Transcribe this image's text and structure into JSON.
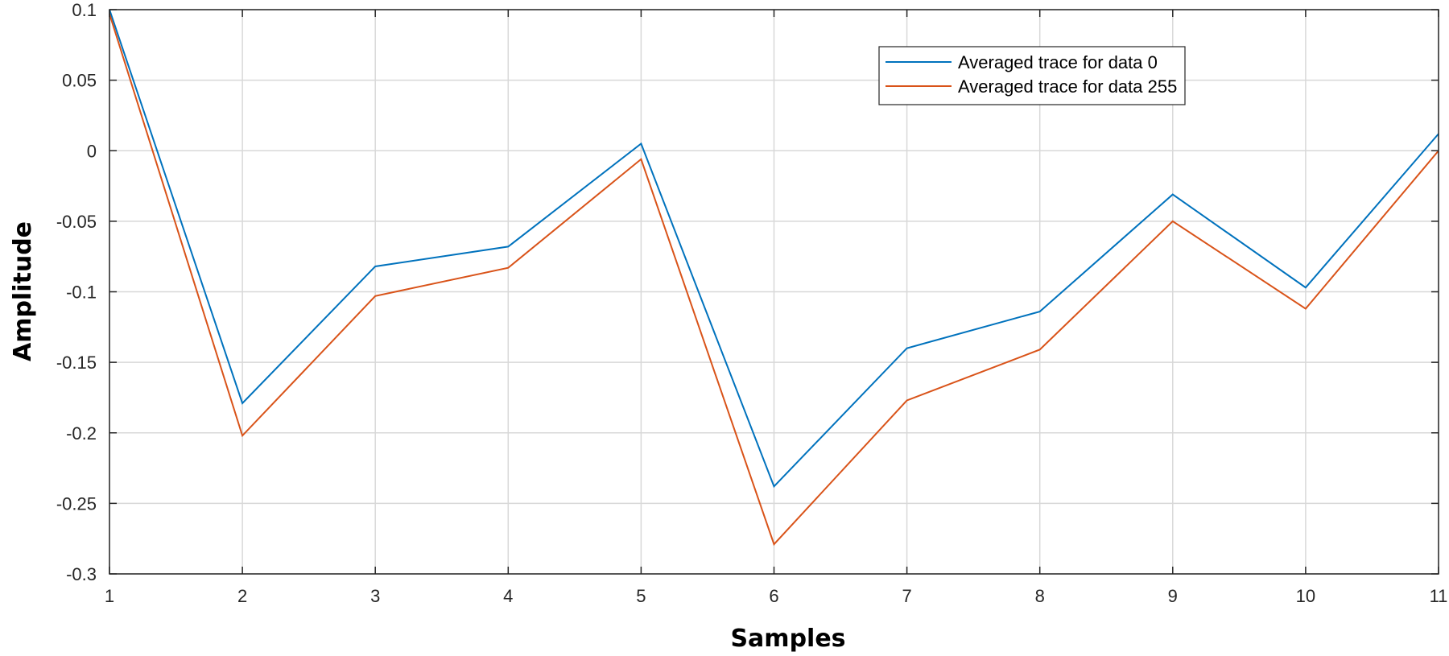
{
  "chart_data": {
    "type": "line",
    "title": "",
    "xlabel": "Samples",
    "ylabel": "Amplitude",
    "x": [
      1,
      2,
      3,
      4,
      5,
      6,
      7,
      8,
      9,
      10,
      11
    ],
    "xlim": [
      1,
      11
    ],
    "ylim": [
      -0.3,
      0.1
    ],
    "xticks": [
      "1",
      "2",
      "3",
      "4",
      "5",
      "6",
      "7",
      "8",
      "9",
      "10",
      "11"
    ],
    "xtick_values": [
      1,
      2,
      3,
      4,
      5,
      6,
      7,
      8,
      9,
      10,
      11
    ],
    "yticks": [
      "0.1",
      "0.05",
      "0",
      "-0.05",
      "-0.1",
      "-0.15",
      "-0.2",
      "-0.25",
      "-0.3"
    ],
    "ytick_values": [
      0.1,
      0.05,
      0,
      -0.05,
      -0.1,
      -0.15,
      -0.2,
      -0.25,
      -0.3
    ],
    "grid": true,
    "legend_position": "top-right",
    "series": [
      {
        "name": "Averaged trace for data 0",
        "color": "#0072BD",
        "values": [
          0.1,
          -0.179,
          -0.082,
          -0.068,
          0.005,
          -0.238,
          -0.14,
          -0.114,
          -0.031,
          -0.097,
          0.012
        ]
      },
      {
        "name": "Averaged trace for data 255",
        "color": "#D95319",
        "values": [
          0.097,
          -0.202,
          -0.103,
          -0.083,
          -0.006,
          -0.279,
          -0.177,
          -0.141,
          -0.05,
          -0.112,
          0.0
        ]
      }
    ]
  }
}
